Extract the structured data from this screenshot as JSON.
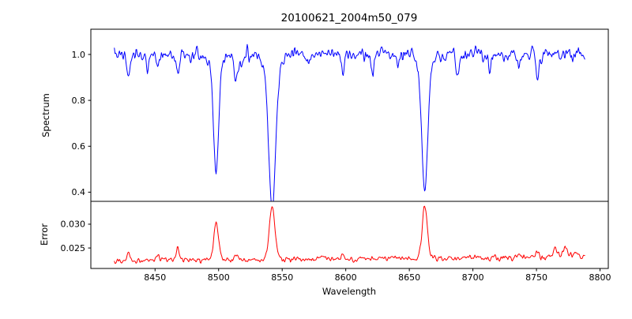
{
  "figure": {
    "title": "20100621_2004m50_079",
    "xlabel": "Wavelength",
    "background": "#ffffff",
    "text_color": "#000000",
    "spine_color": "#000000"
  },
  "x_axis": {
    "label": "Wavelength",
    "xlim": [
      8399.5,
      8806.5
    ],
    "ticks": {
      "values": [
        8450,
        8500,
        8550,
        8600,
        8650,
        8700,
        8750,
        8800
      ],
      "labels": [
        "8450",
        "8500",
        "8550",
        "8600",
        "8650",
        "8700",
        "8750",
        "8800"
      ]
    }
  },
  "chart_data": [
    {
      "type": "line",
      "name": "spectrum",
      "title": "20100621_2004m50_079",
      "ylabel": "Spectrum",
      "color": "#0000ff",
      "line_width": 1.0,
      "x_start": 8418,
      "x_end": 8788,
      "x_step": 0.5,
      "ylim": [
        0.36,
        1.11
      ],
      "yticks": {
        "values": [
          0.4,
          0.6,
          0.8,
          1.0
        ],
        "labels": [
          "0.4",
          "0.6",
          "0.8",
          "1.0"
        ]
      },
      "continuum": 1.0,
      "noise_sigma": 0.013,
      "noise_seed": 42,
      "absorption_features": [
        {
          "center": 8429.0,
          "depth": 0.09,
          "width": 1.4
        },
        {
          "center": 8444.0,
          "depth": 0.06,
          "width": 1.2
        },
        {
          "center": 8452.0,
          "depth": 0.05,
          "width": 1.1
        },
        {
          "center": 8468.0,
          "depth": 0.08,
          "width": 1.4
        },
        {
          "center": 8498.0,
          "depth": 0.45,
          "width": 2.0,
          "wing": 4.5,
          "wing_depth": 0.06
        },
        {
          "center": 8514.0,
          "depth": 0.11,
          "width": 1.8
        },
        {
          "center": 8542.1,
          "depth": 0.6,
          "width": 2.6,
          "wing": 6.0,
          "wing_depth": 0.08
        },
        {
          "center": 8571.0,
          "depth": 0.05,
          "width": 1.2
        },
        {
          "center": 8598.0,
          "depth": 0.07,
          "width": 1.3
        },
        {
          "center": 8621.0,
          "depth": 0.07,
          "width": 1.3
        },
        {
          "center": 8641.0,
          "depth": 0.05,
          "width": 1.2
        },
        {
          "center": 8662.1,
          "depth": 0.52,
          "width": 2.3,
          "wing": 5.0,
          "wing_depth": 0.07
        },
        {
          "center": 8688.0,
          "depth": 0.08,
          "width": 1.3
        },
        {
          "center": 8713.0,
          "depth": 0.07,
          "width": 1.3
        },
        {
          "center": 8736.0,
          "depth": 0.06,
          "width": 1.2
        },
        {
          "center": 8751.0,
          "depth": 0.1,
          "width": 1.4
        }
      ]
    },
    {
      "type": "line",
      "name": "error",
      "ylabel": "Error",
      "color": "#ff0000",
      "line_width": 1.0,
      "x_start": 8418,
      "x_end": 8788,
      "x_step": 0.5,
      "ylim": [
        0.0207,
        0.0348
      ],
      "yticks": {
        "values": [
          0.025,
          0.03
        ],
        "labels": [
          "0.025",
          "0.030"
        ]
      },
      "baseline_start": 0.0223,
      "baseline_end": 0.0231,
      "noise_sigma": 0.00028,
      "noise_seed": 7,
      "peaks": [
        {
          "center": 8429.0,
          "height": 0.0012,
          "width": 1.4
        },
        {
          "center": 8452.0,
          "height": 0.0008,
          "width": 1.2
        },
        {
          "center": 8468.0,
          "height": 0.0028,
          "width": 1.4
        },
        {
          "center": 8498.0,
          "height": 0.0082,
          "width": 1.8
        },
        {
          "center": 8514.0,
          "height": 0.001,
          "width": 1.5
        },
        {
          "center": 8542.1,
          "height": 0.0112,
          "width": 2.2
        },
        {
          "center": 8598.0,
          "height": 0.0007,
          "width": 1.3
        },
        {
          "center": 8662.1,
          "height": 0.0108,
          "width": 2.0
        },
        {
          "center": 8736.0,
          "height": 0.0008,
          "width": 1.3
        },
        {
          "center": 8751.0,
          "height": 0.001,
          "width": 1.4
        },
        {
          "center": 8765.0,
          "height": 0.0018,
          "width": 1.8
        },
        {
          "center": 8773.0,
          "height": 0.0022,
          "width": 1.6
        },
        {
          "center": 8781.0,
          "height": 0.0012,
          "width": 1.4
        }
      ]
    }
  ]
}
